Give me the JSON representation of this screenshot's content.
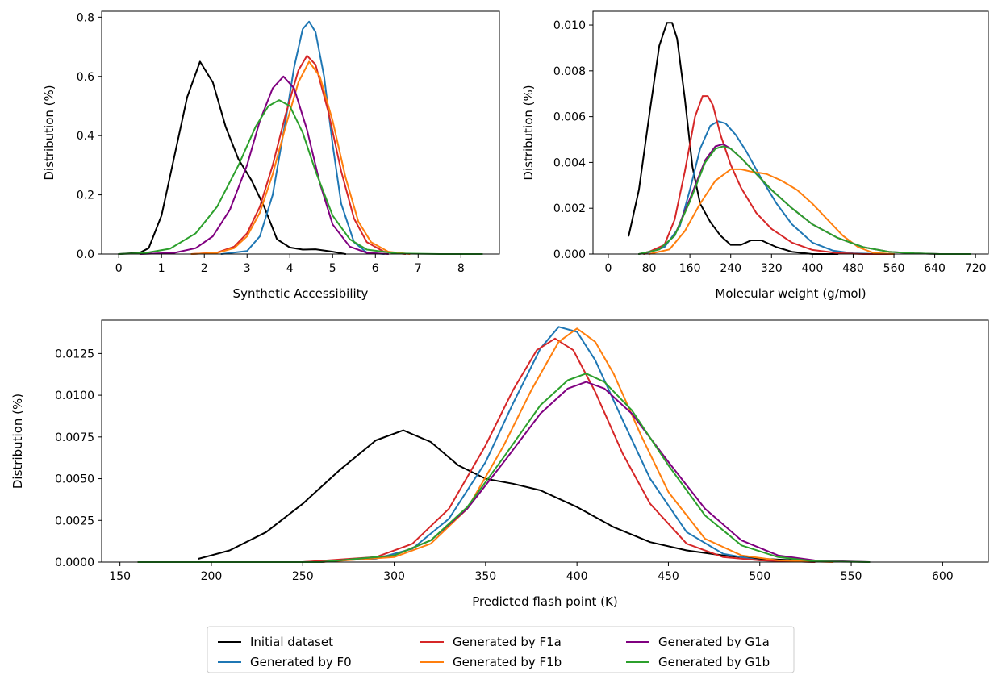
{
  "legend": {
    "placement": "bottom-center",
    "columns": 3,
    "entries": [
      {
        "label": "Initial dataset",
        "color": "#000000"
      },
      {
        "label": "Generated by F0",
        "color": "#1f77b4"
      },
      {
        "label": "Generated by F1a",
        "color": "#d62728"
      },
      {
        "label": "Generated by F1b",
        "color": "#ff7f0e"
      },
      {
        "label": "Generated by G1a",
        "color": "#800080"
      },
      {
        "label": "Generated by G1b",
        "color": "#2ca02c"
      }
    ]
  },
  "chart_data": [
    {
      "type": "line",
      "xlabel": "Synthetic Accessibility",
      "ylabel": "Distribution (%)",
      "xlim": [
        -0.4,
        8.9
      ],
      "ylim": [
        0,
        0.82
      ],
      "xticks": [
        "0",
        "1",
        "2",
        "3",
        "4",
        "5",
        "6",
        "7",
        "8"
      ],
      "yticks": [
        "0.0",
        "0.2",
        "0.4",
        "0.6",
        "0.8"
      ],
      "grid": false,
      "series": [
        {
          "name": "Initial dataset",
          "color": "#000000",
          "x": [
            0.0,
            0.5,
            0.7,
            1.0,
            1.3,
            1.6,
            1.9,
            2.2,
            2.5,
            2.8,
            3.1,
            3.4,
            3.7,
            4.0,
            4.3,
            4.6,
            5.0,
            5.3
          ],
          "y": [
            0.0,
            0.005,
            0.02,
            0.13,
            0.33,
            0.53,
            0.65,
            0.58,
            0.43,
            0.32,
            0.25,
            0.16,
            0.05,
            0.022,
            0.015,
            0.016,
            0.008,
            0.0
          ]
        },
        {
          "name": "Generated by F0",
          "color": "#1f77b4",
          "x": [
            2.4,
            3.0,
            3.3,
            3.6,
            3.9,
            4.1,
            4.3,
            4.45,
            4.6,
            4.8,
            5.0,
            5.2,
            5.5,
            5.8,
            6.2
          ],
          "y": [
            0.0,
            0.01,
            0.06,
            0.2,
            0.45,
            0.63,
            0.76,
            0.785,
            0.75,
            0.6,
            0.37,
            0.17,
            0.04,
            0.005,
            0.0
          ]
        },
        {
          "name": "Generated by F1a",
          "color": "#d62728",
          "x": [
            1.7,
            2.3,
            2.7,
            3.0,
            3.3,
            3.6,
            3.9,
            4.2,
            4.4,
            4.6,
            4.9,
            5.2,
            5.5,
            5.8,
            6.2,
            6.7
          ],
          "y": [
            0.0,
            0.005,
            0.025,
            0.07,
            0.16,
            0.3,
            0.47,
            0.62,
            0.67,
            0.64,
            0.48,
            0.28,
            0.12,
            0.04,
            0.008,
            0.0
          ]
        },
        {
          "name": "Generated by F1b",
          "color": "#ff7f0e",
          "x": [
            1.7,
            2.3,
            2.7,
            3.0,
            3.3,
            3.6,
            3.9,
            4.2,
            4.45,
            4.7,
            5.0,
            5.3,
            5.6,
            5.9,
            6.3,
            6.8
          ],
          "y": [
            0.0,
            0.004,
            0.02,
            0.06,
            0.14,
            0.27,
            0.43,
            0.58,
            0.65,
            0.6,
            0.45,
            0.26,
            0.11,
            0.04,
            0.008,
            0.0
          ]
        },
        {
          "name": "Generated by G1a",
          "color": "#800080",
          "x": [
            0.5,
            1.3,
            1.8,
            2.2,
            2.6,
            3.0,
            3.3,
            3.6,
            3.85,
            4.1,
            4.4,
            4.7,
            5.0,
            5.4,
            5.8,
            6.3
          ],
          "y": [
            0.0,
            0.004,
            0.02,
            0.06,
            0.15,
            0.3,
            0.45,
            0.56,
            0.6,
            0.56,
            0.42,
            0.24,
            0.1,
            0.025,
            0.004,
            0.0
          ]
        },
        {
          "name": "Generated by G1b",
          "color": "#2ca02c",
          "x": [
            0.0,
            0.6,
            1.2,
            1.8,
            2.3,
            2.8,
            3.2,
            3.5,
            3.75,
            4.0,
            4.3,
            4.6,
            5.0,
            5.4,
            5.8,
            6.5,
            7.5,
            8.5
          ],
          "y": [
            0.0,
            0.003,
            0.018,
            0.07,
            0.16,
            0.3,
            0.43,
            0.5,
            0.52,
            0.5,
            0.41,
            0.28,
            0.13,
            0.05,
            0.015,
            0.002,
            0.0,
            0.0
          ]
        }
      ]
    },
    {
      "type": "line",
      "xlabel": "Molecular weight (g/mol)",
      "ylabel": "Distribution (%)",
      "xlim": [
        -30,
        745
      ],
      "ylim": [
        0,
        0.0106
      ],
      "xticks": [
        "0",
        "80",
        "160",
        "240",
        "320",
        "400",
        "480",
        "560",
        "640",
        "720"
      ],
      "yticks": [
        "0.000",
        "0.002",
        "0.004",
        "0.006",
        "0.008",
        "0.010"
      ],
      "grid": false,
      "series": [
        {
          "name": "Initial dataset",
          "color": "#000000",
          "x": [
            40,
            60,
            80,
            100,
            115,
            125,
            135,
            150,
            165,
            180,
            200,
            220,
            240,
            260,
            280,
            300,
            330,
            360,
            400,
            450
          ],
          "y": [
            0.0008,
            0.0028,
            0.006,
            0.0091,
            0.0101,
            0.0101,
            0.0094,
            0.0068,
            0.0038,
            0.0022,
            0.0014,
            0.0008,
            0.0004,
            0.0004,
            0.0006,
            0.0006,
            0.0003,
            0.0001,
            0.0,
            0.0
          ]
        },
        {
          "name": "Generated by F0",
          "color": "#1f77b4",
          "x": [
            70,
            110,
            140,
            160,
            180,
            200,
            215,
            230,
            250,
            270,
            300,
            330,
            360,
            400,
            440,
            480,
            530,
            560
          ],
          "y": [
            0.0,
            0.0003,
            0.0012,
            0.0028,
            0.0046,
            0.0056,
            0.0058,
            0.0057,
            0.0052,
            0.0045,
            0.0033,
            0.0022,
            0.0013,
            0.0005,
            0.00015,
            3e-05,
            0.0,
            0.0
          ]
        },
        {
          "name": "Generated by F1a",
          "color": "#d62728",
          "x": [
            70,
            110,
            130,
            150,
            170,
            185,
            195,
            205,
            220,
            240,
            260,
            290,
            320,
            360,
            400,
            450,
            500,
            560
          ],
          "y": [
            0.0,
            0.0004,
            0.0015,
            0.0036,
            0.006,
            0.0069,
            0.0069,
            0.0065,
            0.0052,
            0.0039,
            0.0029,
            0.0018,
            0.0011,
            0.0005,
            0.00018,
            4e-05,
            0.0,
            0.0
          ]
        },
        {
          "name": "Generated by F1b",
          "color": "#ff7f0e",
          "x": [
            80,
            120,
            150,
            180,
            210,
            240,
            260,
            280,
            310,
            340,
            370,
            400,
            430,
            460,
            490,
            520,
            560
          ],
          "y": [
            0.0,
            0.0002,
            0.001,
            0.0022,
            0.0032,
            0.0037,
            0.0037,
            0.0036,
            0.0035,
            0.0032,
            0.0028,
            0.0022,
            0.0015,
            0.0008,
            0.0003,
            5e-05,
            0.0
          ]
        },
        {
          "name": "Generated by G1a",
          "color": "#800080",
          "x": [
            60,
            100,
            130,
            160,
            190,
            210,
            225,
            240,
            260,
            290,
            320,
            360,
            400,
            450,
            500,
            550,
            600,
            650,
            710
          ],
          "y": [
            0.0,
            0.0002,
            0.0008,
            0.0024,
            0.0041,
            0.0047,
            0.0048,
            0.0046,
            0.0042,
            0.0035,
            0.0028,
            0.002,
            0.0013,
            0.0007,
            0.0003,
            0.0001,
            3e-05,
            0.0,
            0.0
          ]
        },
        {
          "name": "Generated by G1b",
          "color": "#2ca02c",
          "x": [
            60,
            100,
            130,
            160,
            190,
            210,
            225,
            240,
            260,
            290,
            320,
            360,
            400,
            450,
            500,
            550,
            600,
            650,
            710
          ],
          "y": [
            0.0,
            0.0002,
            0.0008,
            0.0023,
            0.004,
            0.0046,
            0.0047,
            0.0046,
            0.0042,
            0.0035,
            0.0028,
            0.002,
            0.0013,
            0.0007,
            0.0003,
            0.0001,
            3e-05,
            0.0,
            0.0
          ]
        }
      ]
    },
    {
      "type": "line",
      "xlabel": "Predicted flash point (K)",
      "ylabel": "Distribution (%)",
      "xlim": [
        140,
        625
      ],
      "ylim": [
        0,
        0.0145
      ],
      "xticks": [
        "150",
        "200",
        "250",
        "300",
        "350",
        "400",
        "450",
        "500",
        "550",
        "600"
      ],
      "yticks": [
        "0.0000",
        "0.0025",
        "0.0050",
        "0.0075",
        "0.0100",
        "0.0125"
      ],
      "grid": false,
      "series": [
        {
          "name": "Initial dataset",
          "color": "#000000",
          "x": [
            193,
            210,
            230,
            250,
            270,
            290,
            305,
            320,
            335,
            350,
            365,
            380,
            400,
            420,
            440,
            460,
            480,
            500,
            520,
            530
          ],
          "y": [
            0.0002,
            0.0007,
            0.0018,
            0.0035,
            0.0055,
            0.0073,
            0.0079,
            0.0072,
            0.0058,
            0.005,
            0.0047,
            0.0043,
            0.0033,
            0.0021,
            0.0012,
            0.0007,
            0.0004,
            0.0002,
            0.0001,
            0.0
          ]
        },
        {
          "name": "Generated by F0",
          "color": "#1f77b4",
          "x": [
            160,
            250,
            290,
            310,
            330,
            350,
            365,
            380,
            390,
            400,
            410,
            425,
            440,
            460,
            480,
            500,
            530
          ],
          "y": [
            0.0,
            0.0,
            0.0002,
            0.0008,
            0.0026,
            0.006,
            0.0095,
            0.0128,
            0.0141,
            0.0138,
            0.0121,
            0.0085,
            0.005,
            0.0018,
            0.0005,
            0.0001,
            0.0
          ]
        },
        {
          "name": "Generated by F1a",
          "color": "#d62728",
          "x": [
            160,
            250,
            290,
            310,
            330,
            350,
            365,
            378,
            388,
            398,
            410,
            425,
            440,
            460,
            480,
            500,
            530
          ],
          "y": [
            0.0,
            0.0,
            0.0003,
            0.0011,
            0.0032,
            0.007,
            0.0103,
            0.0127,
            0.0134,
            0.0127,
            0.0102,
            0.0065,
            0.0035,
            0.0011,
            0.0003,
            0.0001,
            0.0
          ]
        },
        {
          "name": "Generated by F1b",
          "color": "#ff7f0e",
          "x": [
            160,
            260,
            300,
            320,
            340,
            360,
            375,
            390,
            400,
            410,
            420,
            435,
            450,
            470,
            490,
            510,
            540
          ],
          "y": [
            0.0,
            0.0,
            0.0003,
            0.0011,
            0.0032,
            0.007,
            0.0103,
            0.0132,
            0.014,
            0.0132,
            0.0113,
            0.0076,
            0.0042,
            0.0014,
            0.0004,
            0.0001,
            0.0
          ]
        },
        {
          "name": "Generated by G1a",
          "color": "#800080",
          "x": [
            160,
            260,
            300,
            320,
            340,
            360,
            380,
            395,
            405,
            415,
            430,
            450,
            470,
            490,
            510,
            530,
            560
          ],
          "y": [
            0.0,
            0.0,
            0.0004,
            0.0013,
            0.0032,
            0.006,
            0.0089,
            0.0104,
            0.0108,
            0.0104,
            0.0089,
            0.006,
            0.0032,
            0.0013,
            0.0004,
            0.0001,
            0.0
          ]
        },
        {
          "name": "Generated by G1b",
          "color": "#2ca02c",
          "x": [
            160,
            260,
            300,
            320,
            340,
            360,
            380,
            395,
            405,
            415,
            430,
            450,
            470,
            490,
            510,
            530,
            560
          ],
          "y": [
            0.0,
            0.0,
            0.0004,
            0.0013,
            0.0033,
            0.0063,
            0.0094,
            0.0109,
            0.0113,
            0.0108,
            0.0091,
            0.0058,
            0.0028,
            0.001,
            0.0003,
            5e-05,
            0.0
          ]
        }
      ]
    }
  ]
}
